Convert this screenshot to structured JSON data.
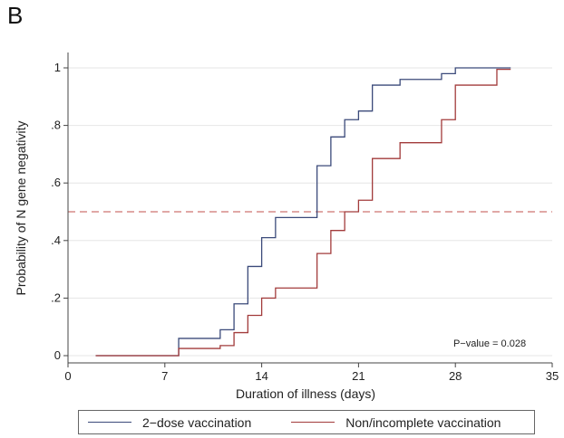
{
  "panel_label": "B",
  "chart_data": {
    "type": "line",
    "step": true,
    "xlabel": "Duration of illness (days)",
    "ylabel": "Probability of N gene negativity",
    "xlim": [
      0,
      35
    ],
    "ylim": [
      0,
      1
    ],
    "x_ticks": [
      0,
      7,
      14,
      21,
      28,
      35
    ],
    "y_ticks": [
      0,
      0.2,
      0.4,
      0.6,
      0.8,
      1
    ],
    "y_tick_labels": [
      "0",
      ".2",
      ".4",
      ".6",
      ".8",
      "1"
    ],
    "grid": true,
    "reference_line": {
      "y": 0.5,
      "color": "#c0504d",
      "style": "dashed"
    },
    "annotation": "P−value = 0.028",
    "legend_position": "bottom",
    "series": [
      {
        "name": "2−dose vaccination",
        "color": "#3b4a7a",
        "x": [
          2,
          8,
          11,
          12,
          13,
          14,
          15,
          18,
          19,
          20,
          21,
          22,
          24,
          27,
          28,
          32
        ],
        "y": [
          0,
          0.06,
          0.09,
          0.18,
          0.31,
          0.41,
          0.48,
          0.66,
          0.76,
          0.82,
          0.85,
          0.94,
          0.96,
          0.98,
          1.0,
          1.0
        ]
      },
      {
        "name": "Non/incomplete vaccination",
        "color": "#a23b3b",
        "x": [
          2,
          8,
          11,
          12,
          13,
          14,
          15,
          18,
          19,
          20,
          21,
          22,
          24,
          27,
          28,
          31,
          32
        ],
        "y": [
          0,
          0.025,
          0.035,
          0.08,
          0.14,
          0.2,
          0.235,
          0.355,
          0.435,
          0.5,
          0.54,
          0.685,
          0.74,
          0.82,
          0.94,
          0.995,
          0.995
        ]
      }
    ]
  }
}
